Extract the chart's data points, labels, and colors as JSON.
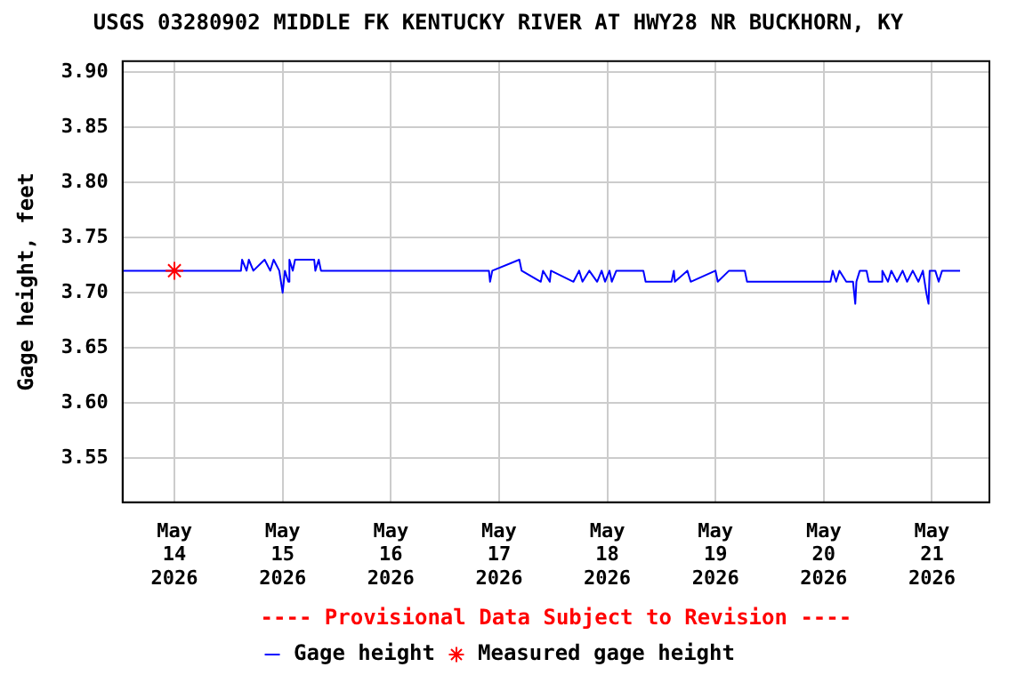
{
  "chart_data": {
    "type": "line",
    "title": "USGS 03280902 MIDDLE FK KENTUCKY RIVER AT HWY28 NR BUCKHORN, KY",
    "ylabel": "Gage height, feet",
    "xlim": [
      "2026-05-13T12:30",
      "2026-05-21T12:45"
    ],
    "xticks": [
      {
        "value": "2026-05-14",
        "label": "May\n14\n2026"
      },
      {
        "value": "2026-05-15",
        "label": "May\n15\n2026"
      },
      {
        "value": "2026-05-16",
        "label": "May\n16\n2026"
      },
      {
        "value": "2026-05-17",
        "label": "May\n17\n2026"
      },
      {
        "value": "2026-05-18",
        "label": "May\n18\n2026"
      },
      {
        "value": "2026-05-19",
        "label": "May\n19\n2026"
      },
      {
        "value": "2026-05-20",
        "label": "May\n20\n2026"
      },
      {
        "value": "2026-05-21",
        "label": "May\n21\n2026"
      }
    ],
    "ylim": [
      3.51,
      3.91
    ],
    "yticks": [
      {
        "value": 3.55,
        "label": "3.55"
      },
      {
        "value": 3.6,
        "label": "3.60"
      },
      {
        "value": 3.65,
        "label": "3.65"
      },
      {
        "value": 3.7,
        "label": "3.70"
      },
      {
        "value": 3.75,
        "label": "3.75"
      },
      {
        "value": 3.8,
        "label": "3.80"
      },
      {
        "value": 3.85,
        "label": "3.85"
      },
      {
        "value": 3.9,
        "label": "3.90"
      }
    ],
    "grid": true,
    "legend": "bottom",
    "annotations": [
      "---- Provisional Data Subject to Revision ----"
    ],
    "series": [
      {
        "name": "Gage height",
        "color": "#0000ff",
        "marker": "none",
        "x": [
          "2026-05-13T12:30",
          "2026-05-14T14:45",
          "2026-05-14T15:00",
          "2026-05-14T16:00",
          "2026-05-14T16:30",
          "2026-05-14T17:30",
          "2026-05-14T20:00",
          "2026-05-14T21:15",
          "2026-05-14T22:00",
          "2026-05-14T23:15",
          "2026-05-15T00:00",
          "2026-05-15T00:30",
          "2026-05-15T01:15",
          "2026-05-15T01:30",
          "2026-05-15T02:15",
          "2026-05-15T02:45",
          "2026-05-15T07:00",
          "2026-05-15T07:15",
          "2026-05-15T08:00",
          "2026-05-15T08:30",
          "2026-05-16T21:45",
          "2026-05-16T22:00",
          "2026-05-16T22:30",
          "2026-05-17T04:30",
          "2026-05-17T05:00",
          "2026-05-17T09:15",
          "2026-05-17T09:45",
          "2026-05-17T11:15",
          "2026-05-17T11:30",
          "2026-05-17T16:30",
          "2026-05-17T17:45",
          "2026-05-17T18:30",
          "2026-05-17T20:00",
          "2026-05-17T21:45",
          "2026-05-17T22:45",
          "2026-05-17T23:30",
          "2026-05-18T00:30",
          "2026-05-18T01:00",
          "2026-05-18T02:00",
          "2026-05-18T08:00",
          "2026-05-18T08:30",
          "2026-05-18T14:15",
          "2026-05-18T14:45",
          "2026-05-18T15:00",
          "2026-05-18T17:45",
          "2026-05-18T18:30",
          "2026-05-19T00:00",
          "2026-05-19T00:30",
          "2026-05-19T03:00",
          "2026-05-19T06:30",
          "2026-05-19T07:00",
          "2026-05-20T01:30",
          "2026-05-20T02:00",
          "2026-05-20T02:45",
          "2026-05-20T03:30",
          "2026-05-20T05:00",
          "2026-05-20T06:30",
          "2026-05-20T07:00",
          "2026-05-20T07:15",
          "2026-05-20T08:00",
          "2026-05-20T09:30",
          "2026-05-20T10:00",
          "2026-05-20T12:45",
          "2026-05-20T13:00",
          "2026-05-20T14:15",
          "2026-05-20T15:00",
          "2026-05-20T16:15",
          "2026-05-20T17:30",
          "2026-05-20T18:30",
          "2026-05-20T19:45",
          "2026-05-20T21:00",
          "2026-05-20T22:00",
          "2026-05-20T22:45",
          "2026-05-20T23:15",
          "2026-05-20T23:30",
          "2026-05-21T00:45",
          "2026-05-21T01:30",
          "2026-05-21T02:15",
          "2026-05-21T06:15"
        ],
        "values": [
          3.72,
          3.72,
          3.73,
          3.72,
          3.73,
          3.72,
          3.73,
          3.72,
          3.73,
          3.72,
          3.7,
          3.72,
          3.71,
          3.73,
          3.72,
          3.73,
          3.73,
          3.72,
          3.73,
          3.72,
          3.72,
          3.71,
          3.72,
          3.73,
          3.72,
          3.71,
          3.72,
          3.71,
          3.72,
          3.71,
          3.72,
          3.71,
          3.72,
          3.71,
          3.72,
          3.71,
          3.72,
          3.71,
          3.72,
          3.72,
          3.71,
          3.71,
          3.72,
          3.71,
          3.72,
          3.71,
          3.72,
          3.71,
          3.72,
          3.72,
          3.71,
          3.71,
          3.72,
          3.71,
          3.72,
          3.71,
          3.71,
          3.69,
          3.71,
          3.72,
          3.72,
          3.71,
          3.71,
          3.72,
          3.71,
          3.72,
          3.71,
          3.72,
          3.71,
          3.72,
          3.71,
          3.72,
          3.7,
          3.69,
          3.72,
          3.72,
          3.71,
          3.72,
          3.72
        ]
      },
      {
        "name": "Measured gage height",
        "type": "scatter",
        "color": "#ff0000",
        "marker": "cross",
        "x": [
          "2026-05-14T00:00"
        ],
        "values": [
          3.72
        ]
      }
    ]
  }
}
